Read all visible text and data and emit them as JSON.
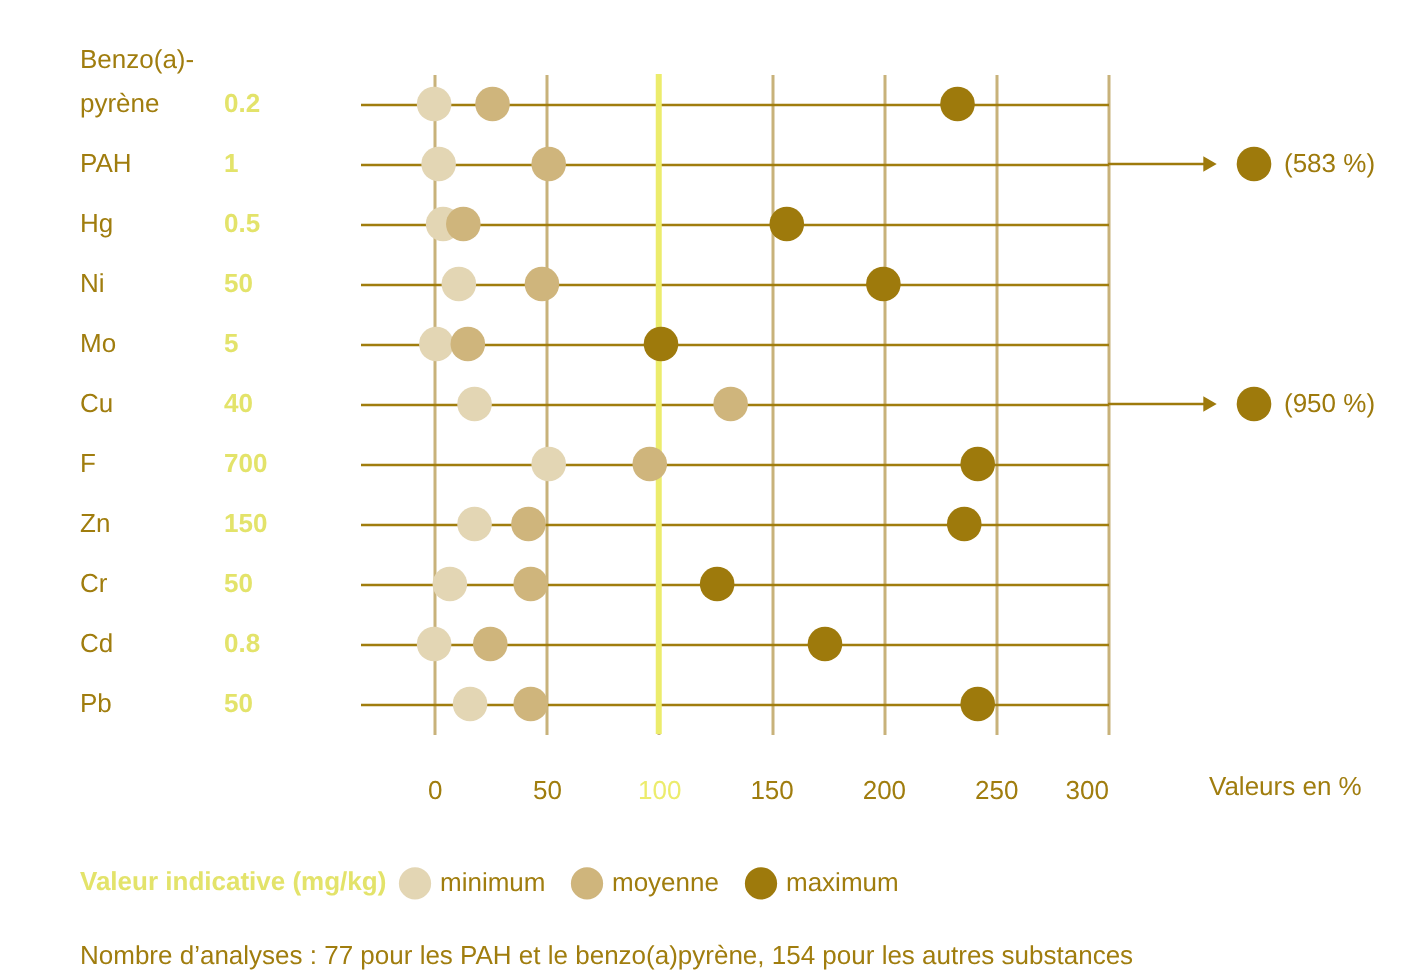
{
  "chart_data": {
    "type": "scatter",
    "orientation": "horizontal",
    "xlabel": "Valeurs en %",
    "legend_title": "Valeur indicative (mg/kg)",
    "legend": "bottom",
    "grid": true,
    "marker": "circle",
    "categories": [
      "Benzo(a)-pyrène",
      "PAH",
      "Hg",
      "Ni",
      "Mo",
      "Cu",
      "F",
      "Zn",
      "Cr",
      "Cd",
      "Pb"
    ],
    "y2_categories": [
      "0.2",
      "1",
      "0.5",
      "50",
      "5",
      "40",
      "700",
      "150",
      "50",
      "0.8",
      "50"
    ],
    "xlim": [
      -33,
      300
    ],
    "xticks": [
      0,
      50,
      100,
      150,
      200,
      250,
      300
    ],
    "series": [
      {
        "name": "minimum",
        "color": "#e3d6b4",
        "values": [
          0,
          2,
          4,
          11,
          1,
          18,
          51,
          18,
          7,
          0,
          16
        ]
      },
      {
        "name": "moyenne",
        "color": "#cfb57c",
        "values": [
          26,
          51,
          13,
          48,
          15,
          132,
          96,
          42,
          43,
          25,
          43
        ]
      },
      {
        "name": "maximum",
        "color": "#9e7a0c",
        "values": [
          233,
          null,
          157,
          200,
          101,
          null,
          242,
          236,
          126,
          174,
          242
        ],
        "value_labels": [
          null,
          "(583 %)",
          null,
          null,
          null,
          "(950 %)",
          null,
          null,
          null,
          null,
          null
        ]
      }
    ],
    "ref_lines": [
      {
        "axis": "x",
        "value": 100,
        "color": "#ecec6c"
      }
    ],
    "annotations": [
      "Nombre d’analyses : 77 pour les PAH et le benzo(a)pyrène, 154 pour les autres substances"
    ]
  }
}
